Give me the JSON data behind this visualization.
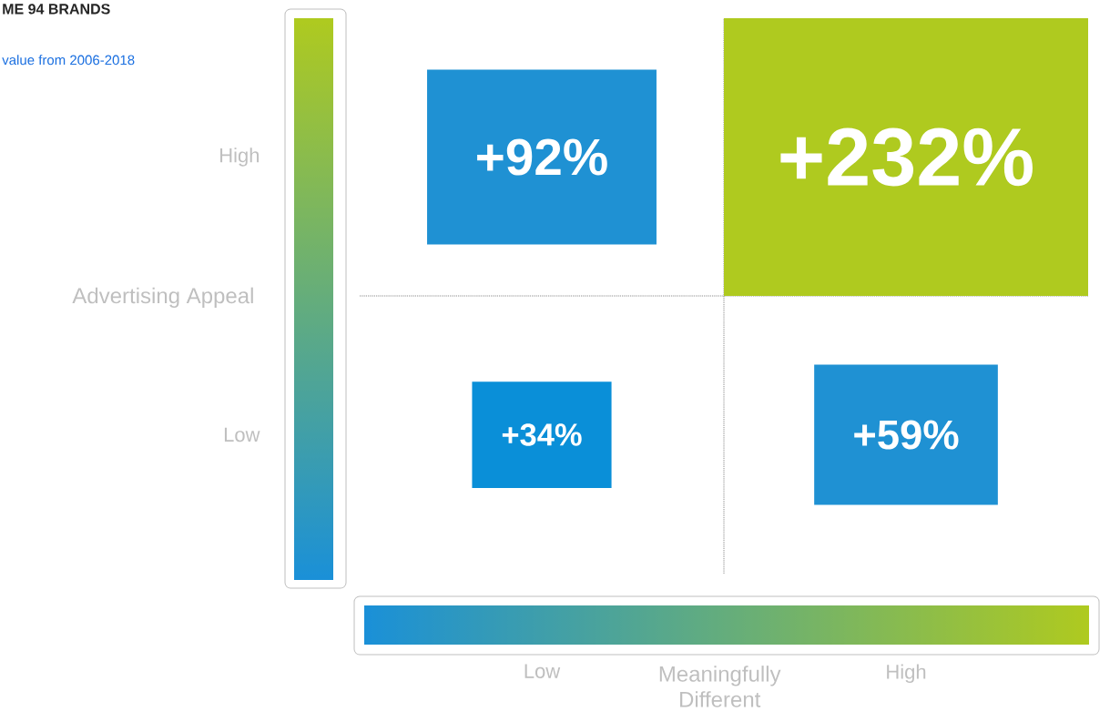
{
  "chart_data": {
    "type": "heatmap",
    "title": "ME 94 BRANDS",
    "subtitle": "value from 2006-2018",
    "xlabel": "Meaningfully Different",
    "ylabel": "Advertising Appeal",
    "categories": [
      "Low",
      "High"
    ],
    "y_categories": [
      "High",
      "Low"
    ],
    "cells": [
      [
        92,
        232
      ],
      [
        34,
        59
      ]
    ],
    "cell_labels": [
      [
        "+92%",
        "+232%"
      ],
      [
        "+34%",
        "+59%"
      ]
    ],
    "colors": [
      [
        "#1f91d3",
        "#afca1f"
      ],
      [
        "#0a8fd8",
        "#1f91d3"
      ]
    ],
    "grid": true
  }
}
